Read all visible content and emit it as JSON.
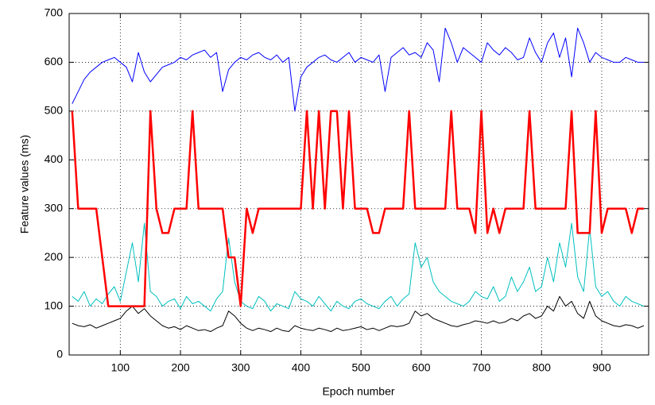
{
  "chart_data": {
    "type": "line",
    "x_label": "Epoch number",
    "y_label": "Feature values (ms)",
    "x": [
      20,
      30,
      40,
      50,
      60,
      70,
      80,
      90,
      100,
      110,
      120,
      130,
      140,
      150,
      160,
      170,
      180,
      190,
      200,
      210,
      220,
      230,
      240,
      250,
      260,
      270,
      280,
      290,
      300,
      310,
      320,
      330,
      340,
      350,
      360,
      370,
      380,
      390,
      400,
      410,
      420,
      430,
      440,
      450,
      460,
      470,
      480,
      490,
      500,
      510,
      520,
      530,
      540,
      550,
      560,
      570,
      580,
      590,
      600,
      610,
      620,
      630,
      640,
      650,
      660,
      670,
      680,
      690,
      700,
      710,
      720,
      730,
      740,
      750,
      760,
      770,
      780,
      790,
      800,
      810,
      820,
      830,
      840,
      850,
      860,
      870,
      880,
      890,
      900,
      910,
      920,
      930,
      940,
      950,
      960,
      970
    ],
    "series": [
      {
        "color": "#0000ff",
        "width": 1,
        "values": [
          515,
          540,
          565,
          580,
          590,
          600,
          605,
          610,
          600,
          590,
          560,
          620,
          580,
          560,
          575,
          590,
          595,
          600,
          610,
          605,
          615,
          620,
          625,
          610,
          620,
          540,
          585,
          600,
          610,
          605,
          615,
          620,
          610,
          605,
          615,
          600,
          610,
          500,
          570,
          590,
          600,
          610,
          615,
          605,
          600,
          610,
          620,
          600,
          610,
          605,
          600,
          615,
          540,
          610,
          620,
          630,
          615,
          620,
          610,
          640,
          625,
          560,
          670,
          640,
          600,
          630,
          620,
          610,
          600,
          640,
          625,
          615,
          630,
          620,
          605,
          610,
          650,
          620,
          600,
          640,
          660,
          610,
          650,
          570,
          670,
          640,
          600,
          620,
          610,
          605,
          600,
          600,
          610,
          605,
          600,
          600
        ]
      },
      {
        "color": "#000000",
        "width": 1,
        "values": [
          65,
          60,
          58,
          62,
          55,
          60,
          65,
          70,
          75,
          90,
          100,
          85,
          95,
          80,
          70,
          60,
          55,
          58,
          52,
          60,
          55,
          50,
          52,
          48,
          55,
          60,
          90,
          80,
          65,
          55,
          50,
          55,
          52,
          48,
          55,
          50,
          48,
          60,
          55,
          52,
          50,
          55,
          52,
          48,
          55,
          50,
          52,
          55,
          58,
          52,
          55,
          50,
          55,
          60,
          58,
          60,
          65,
          90,
          80,
          85,
          75,
          70,
          65,
          60,
          58,
          62,
          65,
          70,
          68,
          65,
          70,
          65,
          68,
          75,
          70,
          80,
          85,
          75,
          80,
          100,
          90,
          120,
          100,
          110,
          85,
          75,
          110,
          80,
          70,
          65,
          60,
          58,
          62,
          60,
          55,
          60
        ]
      },
      {
        "color": "#00bfbf",
        "width": 1,
        "values": [
          120,
          110,
          130,
          100,
          115,
          105,
          125,
          140,
          110,
          170,
          230,
          150,
          270,
          130,
          120,
          100,
          110,
          115,
          95,
          120,
          105,
          110,
          100,
          90,
          115,
          130,
          240,
          150,
          110,
          100,
          95,
          120,
          110,
          90,
          105,
          100,
          95,
          130,
          115,
          110,
          100,
          120,
          105,
          90,
          110,
          100,
          95,
          110,
          115,
          105,
          100,
          95,
          110,
          120,
          100,
          115,
          125,
          230,
          180,
          200,
          150,
          130,
          120,
          110,
          105,
          100,
          110,
          130,
          120,
          115,
          140,
          110,
          120,
          160,
          130,
          150,
          180,
          130,
          140,
          200,
          150,
          230,
          180,
          270,
          160,
          130,
          260,
          140,
          120,
          130,
          110,
          100,
          120,
          110,
          105,
          100
        ]
      },
      {
        "color": "#ff0000",
        "width": 2.5,
        "values": [
          500,
          300,
          300,
          300,
          300,
          200,
          100,
          100,
          100,
          100,
          100,
          100,
          100,
          500,
          300,
          250,
          250,
          300,
          300,
          300,
          500,
          300,
          300,
          300,
          300,
          300,
          200,
          200,
          100,
          300,
          250,
          300,
          300,
          300,
          300,
          300,
          300,
          300,
          300,
          500,
          300,
          500,
          300,
          500,
          500,
          300,
          500,
          300,
          300,
          300,
          250,
          250,
          300,
          300,
          300,
          300,
          500,
          300,
          300,
          300,
          300,
          300,
          300,
          500,
          300,
          300,
          300,
          250,
          500,
          250,
          300,
          250,
          300,
          300,
          300,
          300,
          500,
          300,
          300,
          300,
          300,
          300,
          300,
          500,
          250,
          250,
          250,
          500,
          250,
          300,
          300,
          300,
          300,
          250,
          300,
          300
        ]
      }
    ],
    "xlim": [
      15,
      978
    ],
    "ylim": [
      0,
      700
    ],
    "xticks": [
      100,
      200,
      300,
      400,
      500,
      600,
      700,
      800,
      900
    ],
    "yticks": [
      0,
      100,
      200,
      300,
      400,
      500,
      600,
      700
    ],
    "grid": true
  }
}
